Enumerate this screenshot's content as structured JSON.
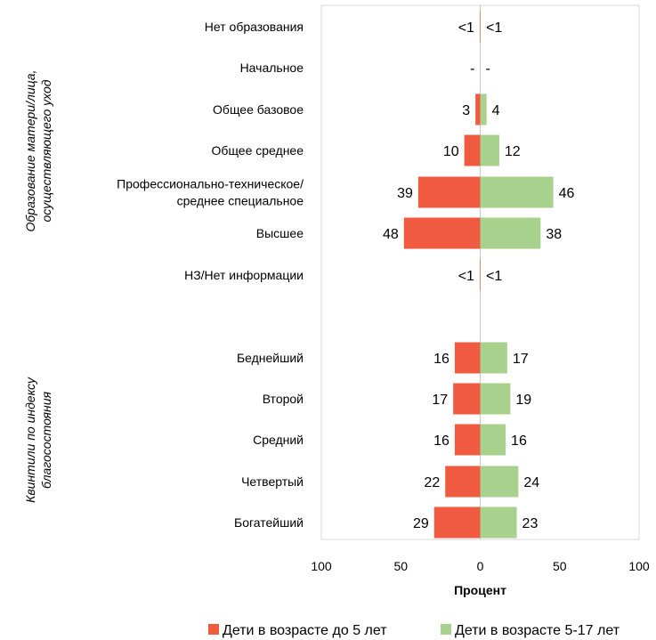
{
  "chart_data": {
    "type": "bar",
    "orientation": "horizontal",
    "style": "population-pyramid",
    "xlabel": "Процент",
    "xlim": [
      -100,
      100
    ],
    "xticks": [
      {
        "value": -100,
        "label": "100"
      },
      {
        "value": -50,
        "label": "50"
      },
      {
        "value": 0,
        "label": "0"
      },
      {
        "value": 50,
        "label": "50"
      },
      {
        "value": 100,
        "label": "100"
      }
    ],
    "groups": [
      {
        "label_lines": [
          "Образование матери/лица,",
          "осуществляющего уход"
        ],
        "categories": [
          {
            "lines": [
              "Нет образования"
            ],
            "left": 0.3,
            "right": 0.3,
            "left_label": "<1",
            "right_label": "<1"
          },
          {
            "lines": [
              "Начальное"
            ],
            "left": 0,
            "right": 0,
            "left_label": "-",
            "right_label": "-"
          },
          {
            "lines": [
              "Общее базовое"
            ],
            "left": 3,
            "right": 4,
            "left_label": "3",
            "right_label": "4"
          },
          {
            "lines": [
              "Общее среднее"
            ],
            "left": 10,
            "right": 12,
            "left_label": "10",
            "right_label": "12"
          },
          {
            "lines": [
              "Профессионально-техническое/",
              "среднее специальное"
            ],
            "left": 39,
            "right": 46,
            "left_label": "39",
            "right_label": "46"
          },
          {
            "lines": [
              "Высшее"
            ],
            "left": 48,
            "right": 38,
            "left_label": "48",
            "right_label": "38"
          },
          {
            "lines": [
              "НЗ/Нет информации"
            ],
            "left": 0.3,
            "right": 0.3,
            "left_label": "<1",
            "right_label": "<1"
          }
        ]
      },
      {
        "label_lines": [
          "Квинтили по индексу",
          "благосостояния"
        ],
        "categories": [
          {
            "lines": [
              "Беднейший"
            ],
            "left": 16,
            "right": 17,
            "left_label": "16",
            "right_label": "17"
          },
          {
            "lines": [
              "Второй"
            ],
            "left": 17,
            "right": 19,
            "left_label": "17",
            "right_label": "19"
          },
          {
            "lines": [
              "Средний"
            ],
            "left": 16,
            "right": 16,
            "left_label": "16",
            "right_label": "16"
          },
          {
            "lines": [
              "Четвертый"
            ],
            "left": 22,
            "right": 24,
            "left_label": "22",
            "right_label": "24"
          },
          {
            "lines": [
              "Богатейший"
            ],
            "left": 29,
            "right": 23,
            "left_label": "29",
            "right_label": "23"
          }
        ]
      }
    ],
    "series": [
      {
        "name": "Дети в возрасте до 5 лет",
        "side": "left",
        "color": "#F05A40"
      },
      {
        "name": "Дети в возрасте 5-17 лет",
        "side": "right",
        "color": "#A9D18E"
      }
    ],
    "legend_position": "bottom"
  }
}
